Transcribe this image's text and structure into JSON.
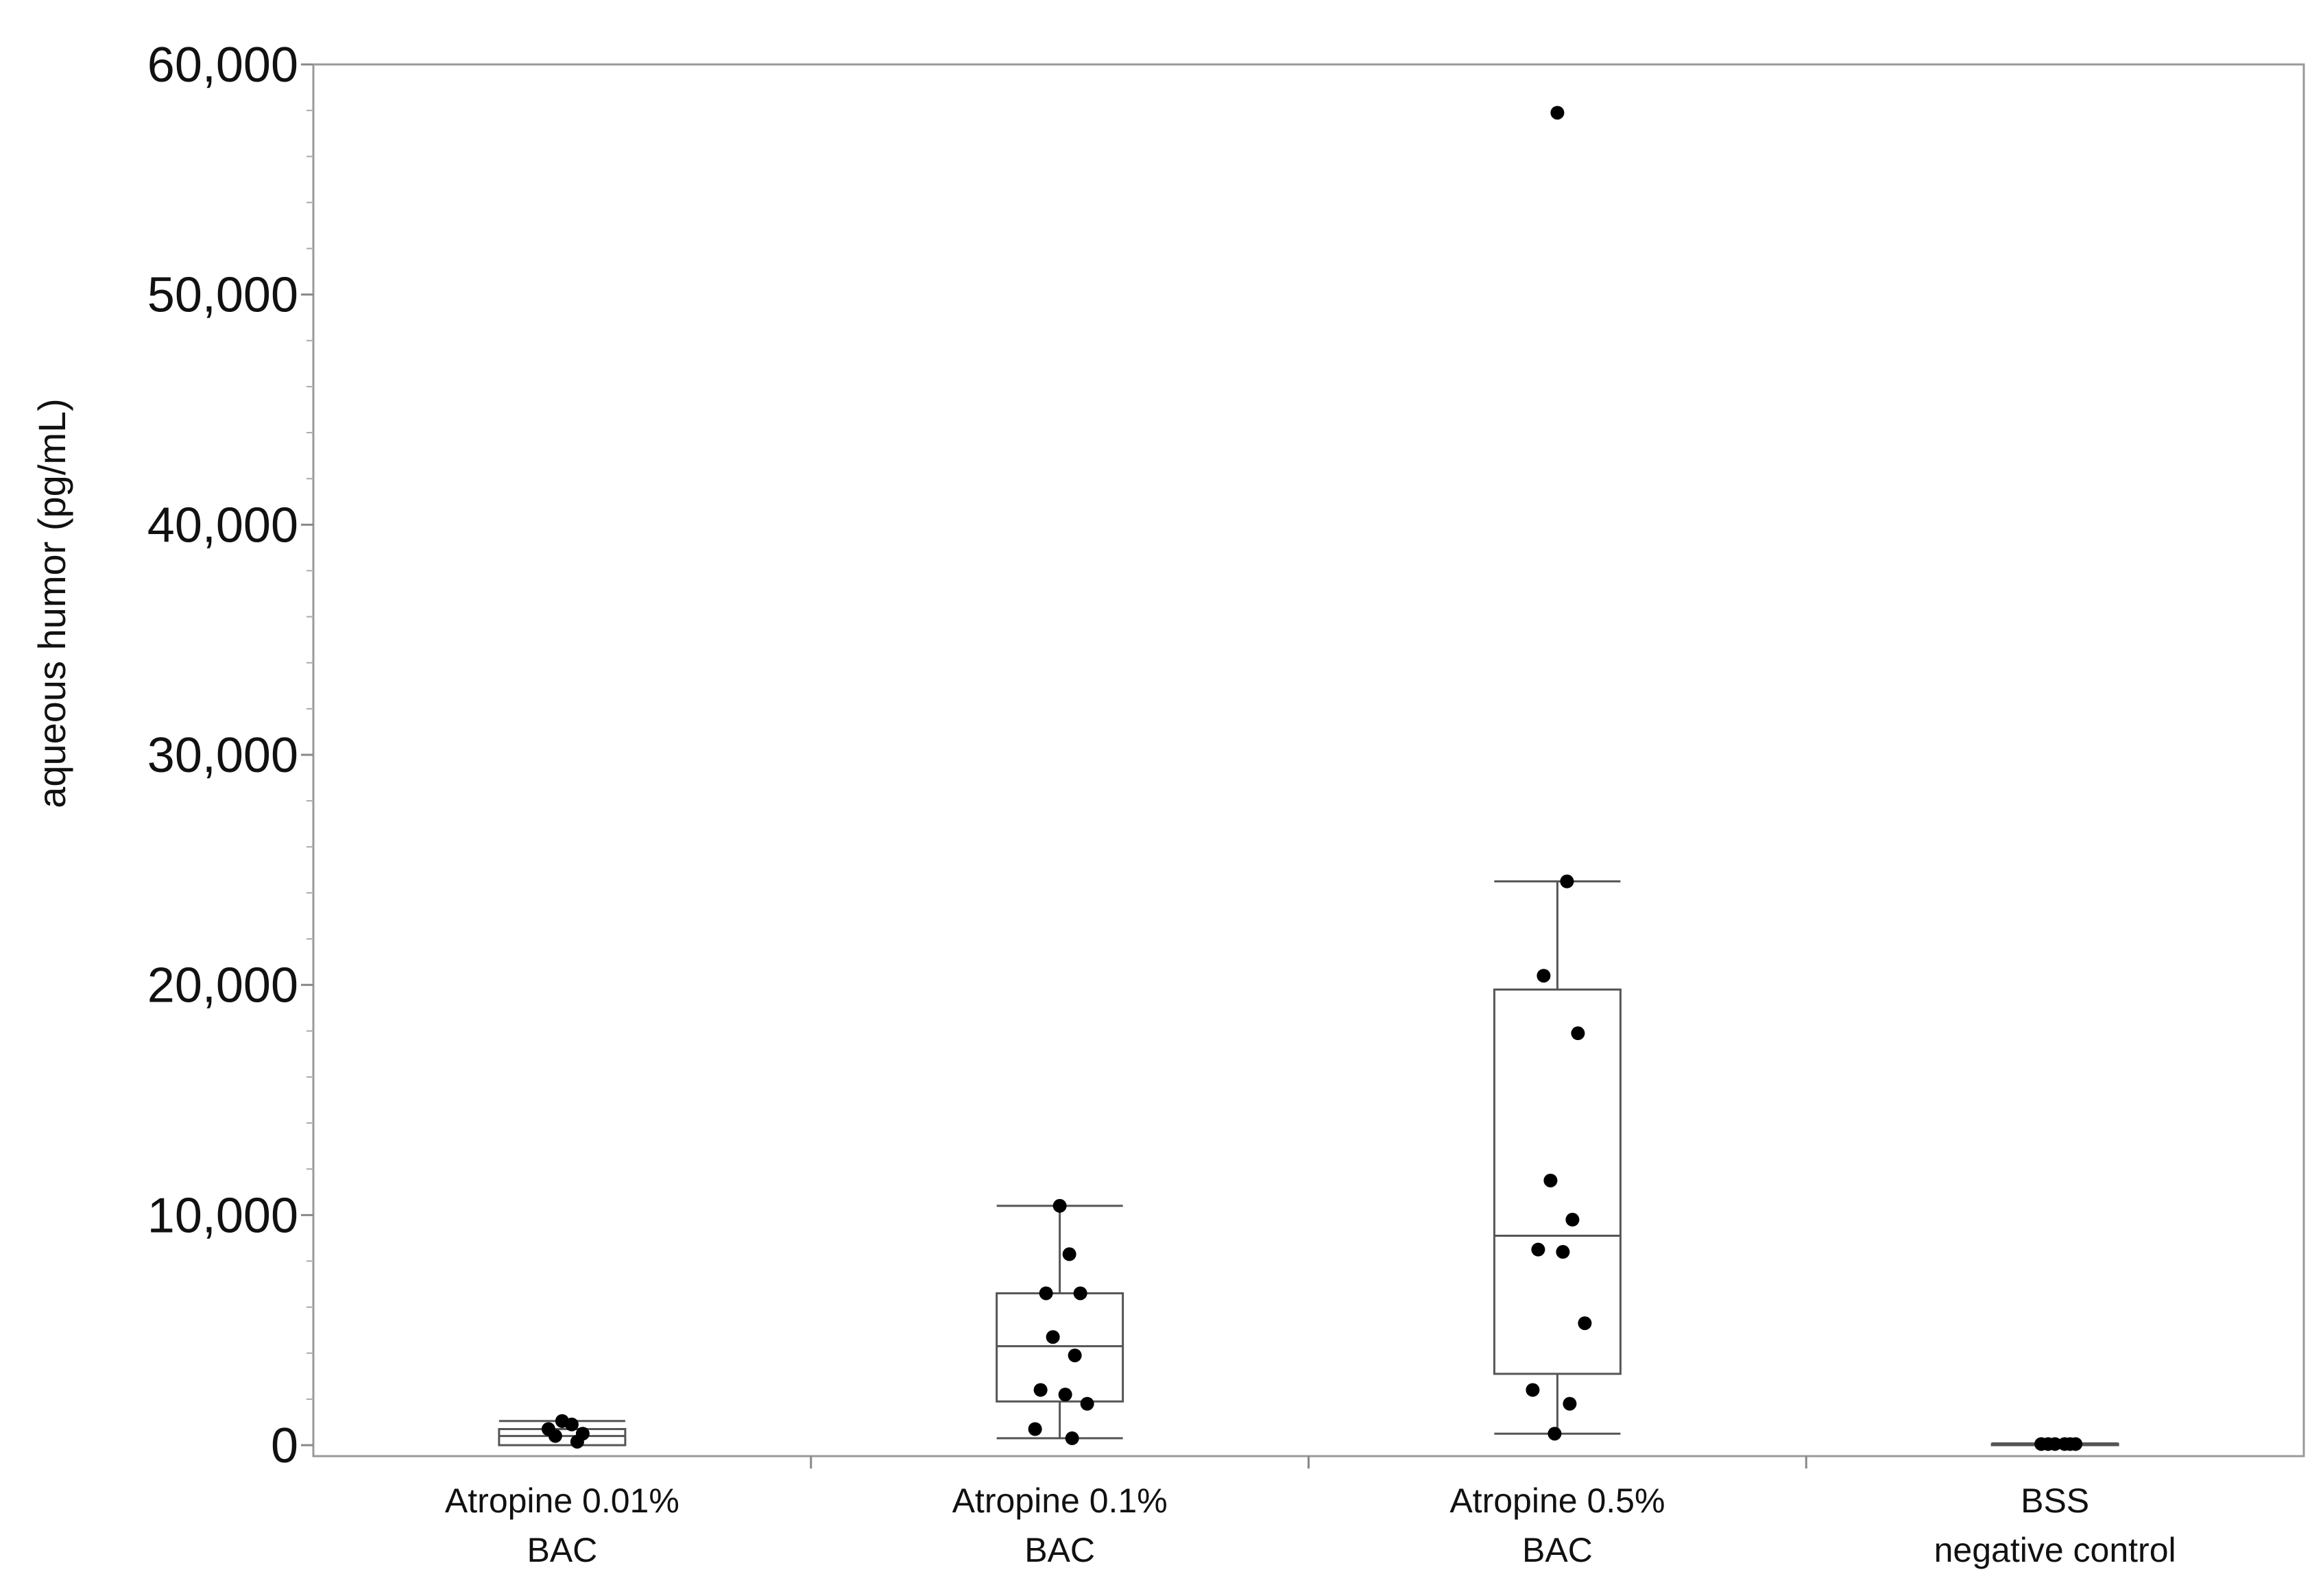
{
  "chart_data": {
    "type": "box",
    "title": "",
    "xlabel": "",
    "ylabel": "aqueous humor (pg/mL)",
    "ylim": [
      0,
      60000
    ],
    "yticks": [
      0,
      10000,
      20000,
      30000,
      40000,
      50000,
      60000
    ],
    "ytick_labels": [
      "0",
      "10,000",
      "20,000",
      "30,000",
      "40,000",
      "50,000",
      "60,000"
    ],
    "grid": false,
    "legend": "none",
    "colors": {
      "box": "#555555",
      "points": "#000000",
      "axis": "#888888"
    },
    "categories": [
      {
        "lines": [
          "Atropine 0.01%",
          "BAC"
        ]
      },
      {
        "lines": [
          "Atropine 0.1%",
          "BAC"
        ]
      },
      {
        "lines": [
          "Atropine 0.5%",
          "BAC"
        ]
      },
      {
        "lines": [
          "BSS",
          "negative control"
        ]
      }
    ],
    "boxes": [
      {
        "whisker_low": 0,
        "q1": 0,
        "median": 400,
        "q3": 700,
        "whisker_high": 1050,
        "points": [
          1050,
          900,
          700,
          500,
          400,
          150
        ]
      },
      {
        "whisker_low": 300,
        "q1": 1900,
        "median": 4300,
        "q3": 6600,
        "whisker_high": 10400,
        "points": [
          10400,
          8300,
          6600,
          6600,
          4700,
          3900,
          2400,
          2200,
          1800,
          700,
          300
        ]
      },
      {
        "whisker_low": 500,
        "q1": 3100,
        "median": 9100,
        "q3": 19800,
        "whisker_high": 24500,
        "points": [
          57900,
          24500,
          20400,
          17900,
          11500,
          9800,
          8500,
          8400,
          5300,
          2400,
          1800,
          500
        ]
      },
      {
        "whisker_low": 0,
        "q1": 20,
        "median": 40,
        "q3": 60,
        "whisker_high": 80,
        "points": [
          50,
          50,
          50,
          50,
          50,
          50
        ]
      }
    ]
  }
}
